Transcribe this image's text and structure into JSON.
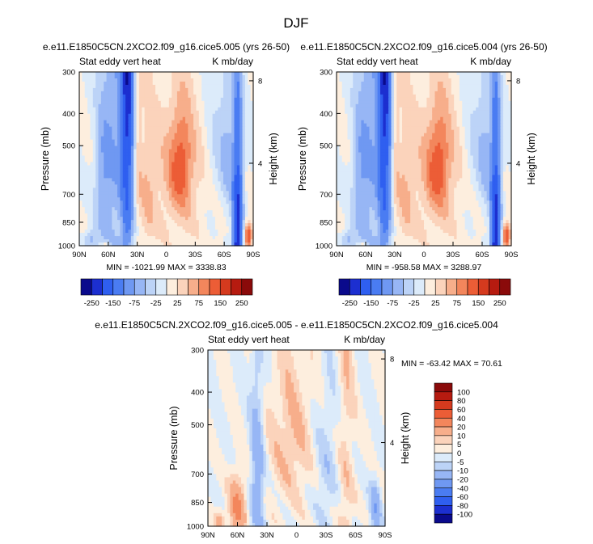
{
  "figure_title": "DJF",
  "chart_data": [
    {
      "type": "heatmap",
      "title": "e.e11.E1850C5CN.2XCO2.f09_g16.cice5.005 (yrs 26-50)",
      "left_label": "Stat eddy vert heat",
      "right_label": "K mb/day",
      "ylabel": "Pressure (mb)",
      "ylabel_right": "Height (km)",
      "x_ticks": [
        "90N",
        "60N",
        "30N",
        "0",
        "30S",
        "60S",
        "90S"
      ],
      "y_ticks": [
        "300",
        "400",
        "500",
        "700",
        "850",
        "1000"
      ],
      "y_ticks_right": [
        "8",
        "4"
      ],
      "min_max_text": "MIN = -1021.99   MAX = 3338.83",
      "levels": [
        -250,
        -200,
        -150,
        -100,
        -75,
        -50,
        -25,
        0,
        25,
        50,
        75,
        100,
        150,
        200,
        250
      ],
      "colorbar_labels": [
        "-250",
        "-150",
        "-75",
        "-25",
        "25",
        "75",
        "150",
        "250"
      ]
    },
    {
      "type": "heatmap",
      "title": "e.e11.E1850C5CN.2XCO2.f09_g16.cice5.004 (yrs 26-50)",
      "left_label": "Stat eddy vert heat",
      "right_label": "K mb/day",
      "ylabel": "Pressure (mb)",
      "ylabel_right": "Height (km)",
      "x_ticks": [
        "90N",
        "60N",
        "30N",
        "0",
        "30S",
        "60S",
        "90S"
      ],
      "y_ticks": [
        "300",
        "400",
        "500",
        "700",
        "850",
        "1000"
      ],
      "y_ticks_right": [
        "8",
        "4"
      ],
      "min_max_text": "MIN = -958.58   MAX = 3288.97",
      "levels": [
        -250,
        -200,
        -150,
        -100,
        -75,
        -50,
        -25,
        0,
        25,
        50,
        75,
        100,
        150,
        200,
        250
      ],
      "colorbar_labels": [
        "-250",
        "-150",
        "-75",
        "-25",
        "25",
        "75",
        "150",
        "250"
      ]
    },
    {
      "type": "heatmap",
      "title": "e.e11.E1850C5CN.2XCO2.f09_g16.cice5.005 - e.e11.E1850C5CN.2XCO2.f09_g16.cice5.004",
      "left_label": "Stat eddy vert heat",
      "right_label": "K mb/day",
      "ylabel": "Pressure (mb)",
      "ylabel_right": "Height (km)",
      "x_ticks": [
        "90N",
        "60N",
        "30N",
        "0",
        "30S",
        "60S",
        "90S"
      ],
      "y_ticks": [
        "300",
        "400",
        "500",
        "700",
        "850",
        "1000"
      ],
      "y_ticks_right": [
        "8",
        "4"
      ],
      "min_max_text": "MIN = -63.42   MAX =  70.61",
      "levels": [
        -100,
        -80,
        -60,
        -40,
        -20,
        -10,
        -5,
        0,
        5,
        10,
        20,
        40,
        60,
        80,
        100
      ],
      "colorbar_labels": [
        "100",
        "80",
        "60",
        "40",
        "20",
        "10",
        "5",
        "0",
        "-5",
        "-10",
        "-20",
        "-40",
        "-60",
        "-80",
        "-100"
      ]
    }
  ],
  "colors": {
    "blue_ramp": [
      "#0a0a8c",
      "#1c2fd0",
      "#2f5ff0",
      "#4a7cf2",
      "#6f98f2",
      "#97b6f5",
      "#bcd3f7",
      "#dcebfa"
    ],
    "red_ramp": [
      "#fdeede",
      "#fbd3bb",
      "#f7ae8b",
      "#f3865c",
      "#ec5d36",
      "#d53a1e",
      "#b61b10",
      "#8a0a0a"
    ]
  }
}
